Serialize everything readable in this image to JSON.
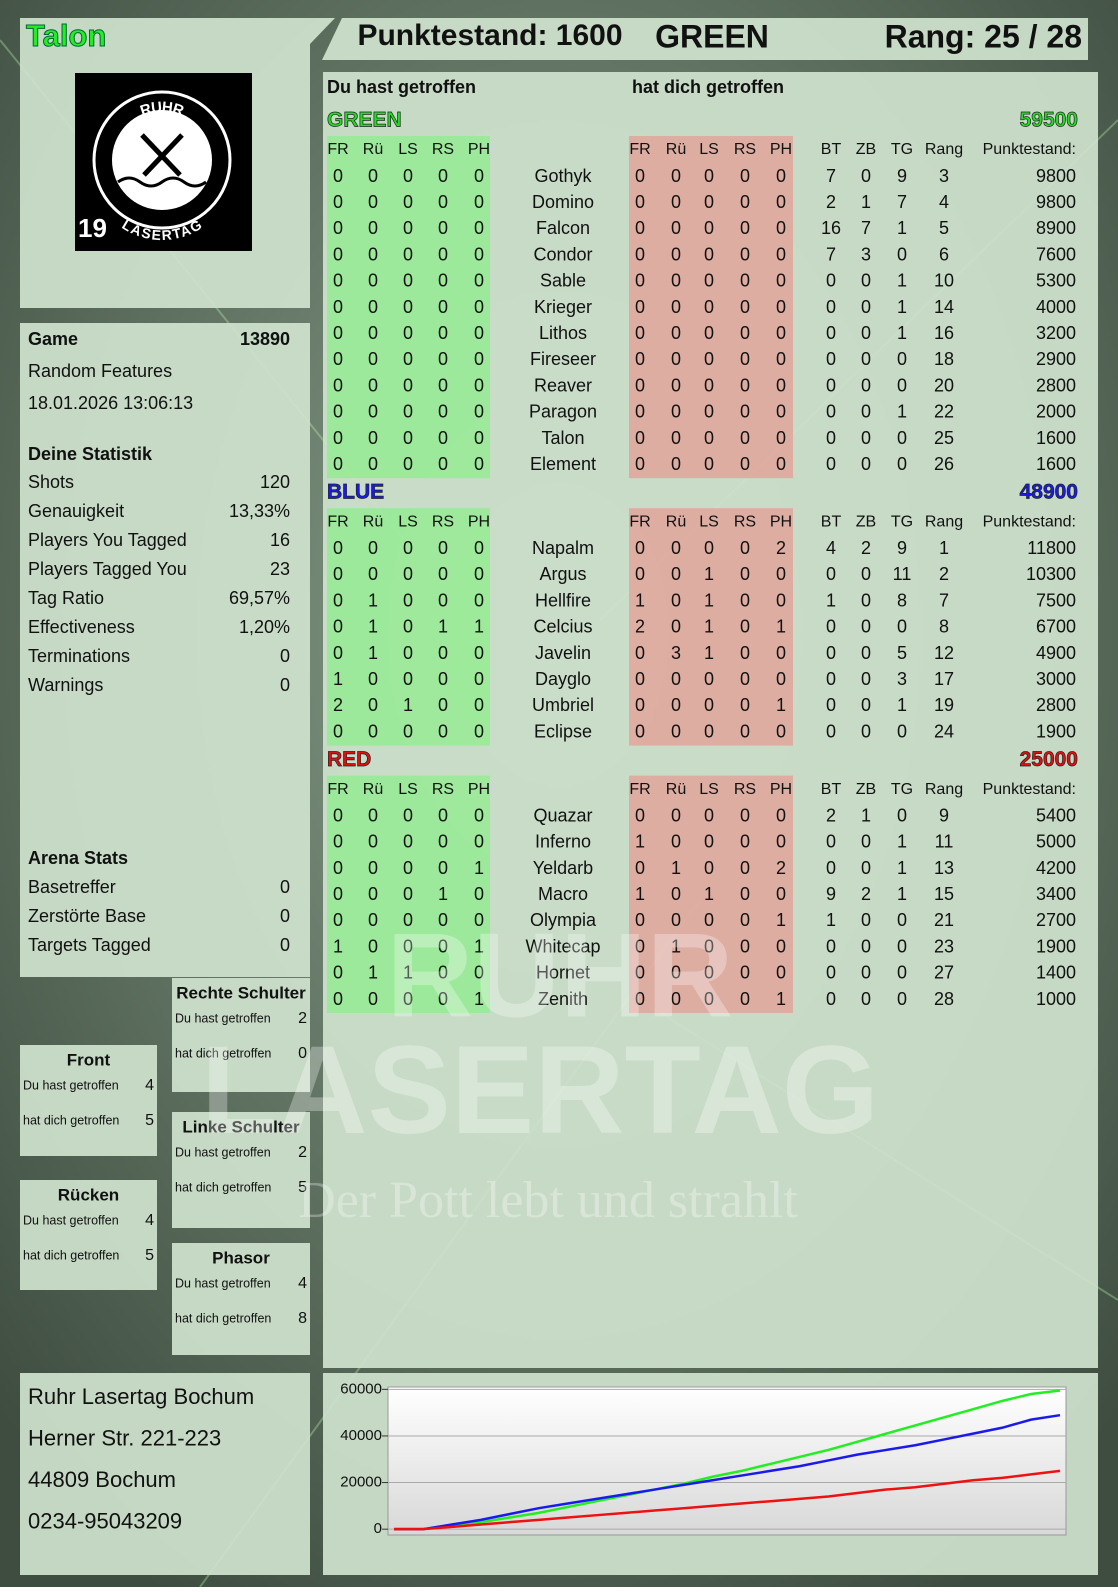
{
  "header": {
    "player": "Talon",
    "score": "Punktestand: 1600",
    "team": "GREEN",
    "rank": "Rang: 25 / 28"
  },
  "logo": {
    "top": "RUHR",
    "bottom": "LASERTAG",
    "number": "19"
  },
  "game": {
    "label": "Game",
    "id": 13890,
    "mode": "Random Features",
    "date": "18.01.2026 13:06:13"
  },
  "stats": {
    "title": "Deine Statistik",
    "rows": [
      {
        "label": "Shots",
        "value": 120
      },
      {
        "label": "Genauigkeit",
        "value": "13,33%"
      },
      {
        "label": "Players You Tagged",
        "value": 16
      },
      {
        "label": "Players Tagged You",
        "value": 23
      },
      {
        "label": "Tag Ratio",
        "value": "69,57%"
      },
      {
        "label": "Effectiveness",
        "value": "1,20%"
      },
      {
        "label": "Terminations",
        "value": 0
      },
      {
        "label": "Warnings",
        "value": 0
      }
    ]
  },
  "arena": {
    "title": "Arena Stats",
    "rows": [
      {
        "label": "Basetreffer",
        "value": 0
      },
      {
        "label": "Zerstörte Base",
        "value": 0
      },
      {
        "label": "Targets Tagged",
        "value": 0
      }
    ]
  },
  "zones": [
    {
      "title": "Rechte Schulter",
      "rows": [
        {
          "label": "Du hast getroffen",
          "value": 2
        },
        {
          "label": "hat dich getroffen",
          "value": 0
        }
      ]
    },
    {
      "title": "Front",
      "rows": [
        {
          "label": "Du hast getroffen",
          "value": 4
        },
        {
          "label": "hat dich getroffen",
          "value": 5
        }
      ]
    },
    {
      "title": "Linke Schulter",
      "rows": [
        {
          "label": "Du hast getroffen",
          "value": 2
        },
        {
          "label": "hat dich getroffen",
          "value": 5
        }
      ]
    },
    {
      "title": "Rücken",
      "rows": [
        {
          "label": "Du hast getroffen",
          "value": 4
        },
        {
          "label": "hat dich getroffen",
          "value": 5
        }
      ]
    },
    {
      "title": "Phasor",
      "rows": [
        {
          "label": "Du hast getroffen",
          "value": 4
        },
        {
          "label": "hat dich getroffen",
          "value": 8
        }
      ]
    }
  ],
  "address": [
    "Ruhr Lasertag Bochum",
    "Herner Str. 221-223",
    "44809 Bochum",
    "0234-95043209"
  ],
  "watermark": {
    "line1": "RUHR",
    "line2": "LASERTAG",
    "slogan": "Der Pott lebt und strahlt"
  },
  "table": {
    "given_title": "Du hast getroffen",
    "received_title": "hat dich getroffen",
    "hit_columns": [
      "FR",
      "Rü",
      "LS",
      "RS",
      "PH"
    ],
    "stat_columns": [
      "BT",
      "ZB",
      "TG",
      "Rang",
      "Punktestand:"
    ]
  },
  "teams": [
    {
      "name": "GREEN",
      "color": "#22dd22",
      "total": 59500,
      "players": [
        {
          "name": "Gothyk",
          "given": [
            0,
            0,
            0,
            0,
            0
          ],
          "received": [
            0,
            0,
            0,
            0,
            0
          ],
          "stats": [
            7,
            0,
            9,
            3,
            9800
          ]
        },
        {
          "name": "Domino",
          "given": [
            0,
            0,
            0,
            0,
            0
          ],
          "received": [
            0,
            0,
            0,
            0,
            0
          ],
          "stats": [
            2,
            1,
            7,
            4,
            9800
          ]
        },
        {
          "name": "Falcon",
          "given": [
            0,
            0,
            0,
            0,
            0
          ],
          "received": [
            0,
            0,
            0,
            0,
            0
          ],
          "stats": [
            16,
            7,
            1,
            5,
            8900
          ]
        },
        {
          "name": "Condor",
          "given": [
            0,
            0,
            0,
            0,
            0
          ],
          "received": [
            0,
            0,
            0,
            0,
            0
          ],
          "stats": [
            7,
            3,
            0,
            6,
            7600
          ]
        },
        {
          "name": "Sable",
          "given": [
            0,
            0,
            0,
            0,
            0
          ],
          "received": [
            0,
            0,
            0,
            0,
            0
          ],
          "stats": [
            0,
            0,
            1,
            10,
            5300
          ]
        },
        {
          "name": "Krieger",
          "given": [
            0,
            0,
            0,
            0,
            0
          ],
          "received": [
            0,
            0,
            0,
            0,
            0
          ],
          "stats": [
            0,
            0,
            1,
            14,
            4000
          ]
        },
        {
          "name": "Lithos",
          "given": [
            0,
            0,
            0,
            0,
            0
          ],
          "received": [
            0,
            0,
            0,
            0,
            0
          ],
          "stats": [
            0,
            0,
            1,
            16,
            3200
          ]
        },
        {
          "name": "Fireseer",
          "given": [
            0,
            0,
            0,
            0,
            0
          ],
          "received": [
            0,
            0,
            0,
            0,
            0
          ],
          "stats": [
            0,
            0,
            0,
            18,
            2900
          ]
        },
        {
          "name": "Reaver",
          "given": [
            0,
            0,
            0,
            0,
            0
          ],
          "received": [
            0,
            0,
            0,
            0,
            0
          ],
          "stats": [
            0,
            0,
            0,
            20,
            2800
          ]
        },
        {
          "name": "Paragon",
          "given": [
            0,
            0,
            0,
            0,
            0
          ],
          "received": [
            0,
            0,
            0,
            0,
            0
          ],
          "stats": [
            0,
            0,
            1,
            22,
            2000
          ]
        },
        {
          "name": "Talon",
          "given": [
            0,
            0,
            0,
            0,
            0
          ],
          "received": [
            0,
            0,
            0,
            0,
            0
          ],
          "stats": [
            0,
            0,
            0,
            25,
            1600
          ]
        },
        {
          "name": "Element",
          "given": [
            0,
            0,
            0,
            0,
            0
          ],
          "received": [
            0,
            0,
            0,
            0,
            0
          ],
          "stats": [
            0,
            0,
            0,
            26,
            1600
          ]
        }
      ]
    },
    {
      "name": "BLUE",
      "color": "#1a1aee",
      "total": 48900,
      "players": [
        {
          "name": "Napalm",
          "given": [
            0,
            0,
            0,
            0,
            0
          ],
          "received": [
            0,
            0,
            0,
            0,
            2
          ],
          "stats": [
            4,
            2,
            9,
            1,
            11800
          ]
        },
        {
          "name": "Argus",
          "given": [
            0,
            0,
            0,
            0,
            0
          ],
          "received": [
            0,
            0,
            1,
            0,
            0
          ],
          "stats": [
            0,
            0,
            11,
            2,
            10300
          ]
        },
        {
          "name": "Hellfire",
          "given": [
            0,
            1,
            0,
            0,
            0
          ],
          "received": [
            1,
            0,
            1,
            0,
            0
          ],
          "stats": [
            1,
            0,
            8,
            7,
            7500
          ]
        },
        {
          "name": "Celcius",
          "given": [
            0,
            1,
            0,
            1,
            1
          ],
          "received": [
            2,
            0,
            1,
            0,
            1
          ],
          "stats": [
            0,
            0,
            0,
            8,
            6700
          ]
        },
        {
          "name": "Javelin",
          "given": [
            0,
            1,
            0,
            0,
            0
          ],
          "received": [
            0,
            3,
            1,
            0,
            0
          ],
          "stats": [
            0,
            0,
            5,
            12,
            4900
          ]
        },
        {
          "name": "Dayglo",
          "given": [
            1,
            0,
            0,
            0,
            0
          ],
          "received": [
            0,
            0,
            0,
            0,
            0
          ],
          "stats": [
            0,
            0,
            3,
            17,
            3000
          ]
        },
        {
          "name": "Umbriel",
          "given": [
            2,
            0,
            1,
            0,
            0
          ],
          "received": [
            0,
            0,
            0,
            0,
            1
          ],
          "stats": [
            0,
            0,
            1,
            19,
            2800
          ]
        },
        {
          "name": "Eclipse",
          "given": [
            0,
            0,
            0,
            0,
            0
          ],
          "received": [
            0,
            0,
            0,
            0,
            0
          ],
          "stats": [
            0,
            0,
            0,
            24,
            1900
          ]
        }
      ]
    },
    {
      "name": "RED",
      "color": "#dd1111",
      "total": 25000,
      "players": [
        {
          "name": "Quazar",
          "given": [
            0,
            0,
            0,
            0,
            0
          ],
          "received": [
            0,
            0,
            0,
            0,
            0
          ],
          "stats": [
            2,
            1,
            0,
            9,
            5400
          ]
        },
        {
          "name": "Inferno",
          "given": [
            0,
            0,
            0,
            0,
            0
          ],
          "received": [
            1,
            0,
            0,
            0,
            0
          ],
          "stats": [
            0,
            0,
            1,
            11,
            5000
          ]
        },
        {
          "name": "Yeldarb",
          "given": [
            0,
            0,
            0,
            0,
            1
          ],
          "received": [
            0,
            1,
            0,
            0,
            2
          ],
          "stats": [
            0,
            0,
            1,
            13,
            4200
          ]
        },
        {
          "name": "Macro",
          "given": [
            0,
            0,
            0,
            1,
            0
          ],
          "received": [
            1,
            0,
            1,
            0,
            0
          ],
          "stats": [
            9,
            2,
            1,
            15,
            3400
          ]
        },
        {
          "name": "Olympia",
          "given": [
            0,
            0,
            0,
            0,
            0
          ],
          "received": [
            0,
            0,
            0,
            0,
            1
          ],
          "stats": [
            1,
            0,
            0,
            21,
            2700
          ]
        },
        {
          "name": "Whitecap",
          "given": [
            1,
            0,
            0,
            0,
            1
          ],
          "received": [
            0,
            1,
            0,
            0,
            0
          ],
          "stats": [
            0,
            0,
            0,
            23,
            1900
          ]
        },
        {
          "name": "Hornet",
          "given": [
            0,
            1,
            1,
            0,
            0
          ],
          "received": [
            0,
            0,
            0,
            0,
            0
          ],
          "stats": [
            0,
            0,
            0,
            27,
            1400
          ]
        },
        {
          "name": "Zenith",
          "given": [
            0,
            0,
            0,
            0,
            1
          ],
          "received": [
            0,
            0,
            0,
            0,
            1
          ],
          "stats": [
            0,
            0,
            0,
            28,
            1000
          ]
        }
      ]
    }
  ],
  "chart_data": {
    "type": "line",
    "ylim": [
      -2500,
      61000
    ],
    "yticks": [
      0,
      20000,
      40000,
      60000
    ],
    "grid": true,
    "series": [
      {
        "name": "GREEN",
        "color": "#22ee22",
        "values": [
          0,
          0,
          1500,
          3000,
          5000,
          7000,
          9500,
          12000,
          14500,
          17000,
          19500,
          22500,
          25000,
          28000,
          31000,
          34000,
          37500,
          41000,
          44500,
          48000,
          51500,
          55000,
          58000,
          59500
        ]
      },
      {
        "name": "BLUE",
        "color": "#1a1aee",
        "values": [
          0,
          0,
          2000,
          4000,
          6500,
          9000,
          11000,
          13000,
          15000,
          17000,
          19000,
          21000,
          23000,
          25000,
          27000,
          29500,
          32000,
          34000,
          36000,
          38500,
          41000,
          43500,
          47000,
          48900
        ]
      },
      {
        "name": "RED",
        "color": "#ee1111",
        "values": [
          0,
          0,
          1000,
          2000,
          3000,
          4000,
          5000,
          6000,
          7000,
          8000,
          9000,
          10000,
          11000,
          12000,
          13000,
          14000,
          15500,
          17000,
          18000,
          19500,
          21000,
          22000,
          23500,
          25000
        ]
      }
    ]
  }
}
